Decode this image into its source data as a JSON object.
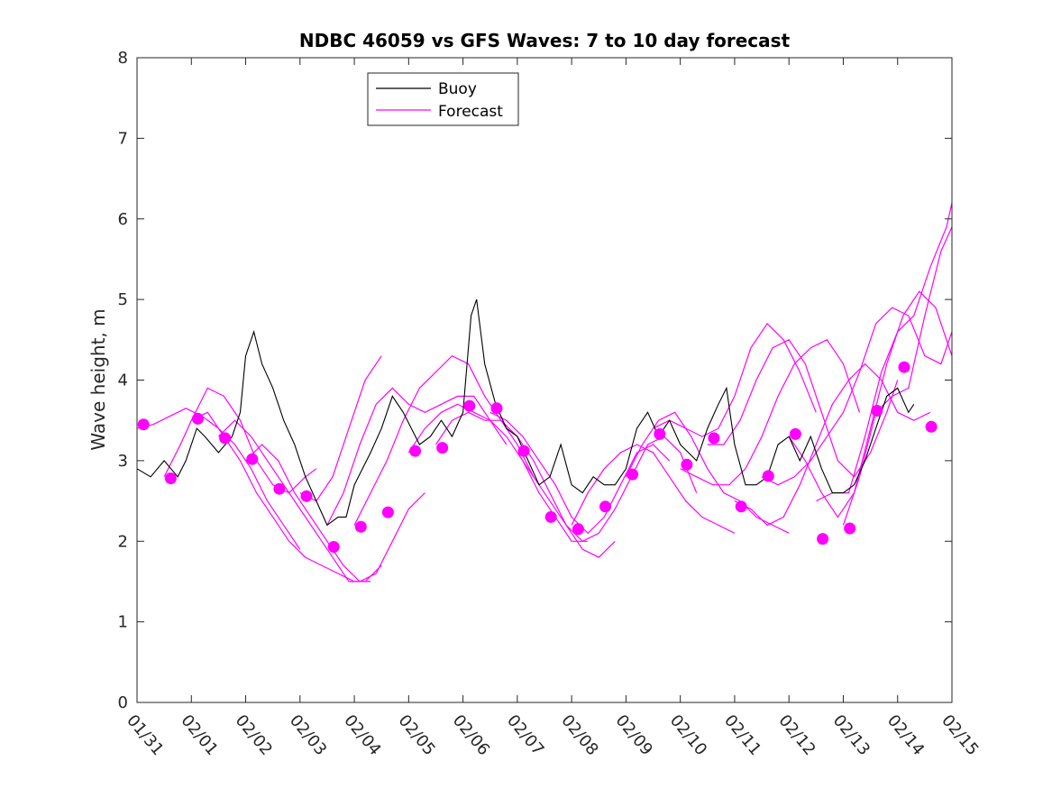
{
  "chart_data": {
    "type": "line",
    "title": "NDBC 46059 vs GFS Waves: 7 to 10 day forecast",
    "xlabel": "",
    "ylabel": "Wave height, m",
    "xlim": [
      0,
      15
    ],
    "ylim": [
      0,
      8
    ],
    "yticks": [
      0,
      1,
      2,
      3,
      4,
      5,
      6,
      7,
      8
    ],
    "xtick_labels": [
      "01/31",
      "02/01",
      "02/02",
      "02/03",
      "02/04",
      "02/05",
      "02/06",
      "02/07",
      "02/08",
      "02/09",
      "02/10",
      "02/11",
      "02/12",
      "02/13",
      "02/14",
      "02/15"
    ],
    "legend": [
      {
        "name": "Buoy",
        "color": "#000000"
      },
      {
        "name": "Forecast",
        "color": "#ff00ff"
      }
    ],
    "legend_position": "top-left",
    "series": [
      {
        "name": "Buoy",
        "color": "#000000",
        "x": [
          0,
          0.25,
          0.5,
          0.75,
          0.9,
          1.1,
          1.25,
          1.5,
          1.75,
          1.9,
          2.0,
          2.15,
          2.3,
          2.5,
          2.7,
          2.9,
          3.1,
          3.3,
          3.5,
          3.7,
          3.85,
          4.0,
          4.3,
          4.5,
          4.7,
          4.9,
          5.2,
          5.4,
          5.6,
          5.8,
          6.0,
          6.15,
          6.25,
          6.4,
          6.6,
          6.8,
          7.0,
          7.2,
          7.4,
          7.6,
          7.8,
          8.0,
          8.2,
          8.4,
          8.6,
          8.8,
          9.0,
          9.2,
          9.4,
          9.6,
          9.8,
          10.0,
          10.3,
          10.5,
          10.7,
          10.85,
          11.0,
          11.2,
          11.4,
          11.6,
          11.8,
          12.0,
          12.2,
          12.4,
          12.6,
          12.8,
          13.0,
          13.2,
          13.4,
          13.6,
          13.8,
          14.0,
          14.2,
          14.3
        ],
        "values": [
          2.9,
          2.8,
          3.0,
          2.8,
          3.0,
          3.4,
          3.3,
          3.1,
          3.3,
          3.6,
          4.3,
          4.6,
          4.2,
          3.9,
          3.5,
          3.2,
          2.8,
          2.5,
          2.2,
          2.3,
          2.3,
          2.7,
          3.1,
          3.4,
          3.8,
          3.6,
          3.2,
          3.3,
          3.5,
          3.3,
          3.6,
          4.8,
          5.0,
          4.2,
          3.7,
          3.4,
          3.3,
          3.0,
          2.7,
          2.8,
          3.2,
          2.7,
          2.6,
          2.8,
          2.7,
          2.7,
          2.9,
          3.4,
          3.6,
          3.3,
          3.5,
          3.2,
          3.0,
          3.4,
          3.7,
          3.9,
          3.2,
          2.7,
          2.7,
          2.8,
          3.2,
          3.3,
          3.0,
          3.3,
          2.9,
          2.6,
          2.6,
          2.7,
          3.0,
          3.4,
          3.8,
          3.9,
          3.6,
          3.7
        ]
      }
    ],
    "forecast_runs": [
      {
        "name": "Forecast",
        "x": [
          0,
          0.3,
          0.6,
          0.9,
          1.2,
          1.5,
          1.8,
          2.1,
          2.4,
          2.7,
          3.0
        ],
        "values": [
          3.4,
          3.45,
          3.55,
          3.65,
          3.55,
          3.4,
          3.2,
          2.9,
          2.5,
          2.2,
          1.9
        ]
      },
      {
        "name": "Forecast",
        "x": [
          0.5,
          0.8,
          1.0,
          1.3,
          1.6,
          1.9,
          2.2,
          2.5,
          2.8,
          3.1,
          3.3
        ],
        "values": [
          2.8,
          3.2,
          3.5,
          3.9,
          3.8,
          3.5,
          3.0,
          2.7,
          2.6,
          2.8,
          2.9
        ]
      },
      {
        "name": "Forecast",
        "x": [
          1.0,
          1.3,
          1.6,
          1.9,
          2.2,
          2.5,
          2.8,
          3.1,
          3.4,
          3.7,
          4.0,
          4.3
        ],
        "values": [
          3.5,
          3.6,
          3.3,
          3.0,
          2.6,
          2.3,
          2.0,
          1.8,
          1.7,
          1.6,
          1.5,
          1.5
        ]
      },
      {
        "name": "Forecast",
        "x": [
          1.5,
          1.8,
          2.1,
          2.4,
          2.7,
          3.0,
          3.3,
          3.6,
          3.9,
          4.2,
          4.5
        ],
        "values": [
          3.3,
          3.5,
          3.3,
          3.0,
          2.7,
          2.4,
          2.1,
          1.8,
          1.5,
          1.5,
          1.7
        ]
      },
      {
        "name": "Forecast",
        "x": [
          2.0,
          2.3,
          2.6,
          2.9,
          3.2,
          3.5,
          3.8,
          4.1,
          4.4,
          4.7,
          5.0,
          5.3
        ],
        "values": [
          3.0,
          3.2,
          3.0,
          2.6,
          2.3,
          2.0,
          1.7,
          1.5,
          1.6,
          2.0,
          2.4,
          2.6
        ]
      },
      {
        "name": "Forecast",
        "x": [
          3.0,
          3.3,
          3.6,
          3.9,
          4.2,
          4.5
        ],
        "values": [
          2.6,
          2.5,
          2.8,
          3.4,
          4.0,
          4.3
        ]
      },
      {
        "name": "Forecast",
        "x": [
          3.5,
          3.8,
          4.1,
          4.4,
          4.7,
          5.0,
          5.3,
          5.6,
          5.9,
          6.2,
          6.5,
          6.8
        ],
        "values": [
          2.2,
          2.6,
          3.2,
          3.7,
          3.9,
          3.7,
          3.6,
          3.7,
          3.8,
          3.8,
          3.5,
          3.2
        ]
      },
      {
        "name": "Forecast",
        "x": [
          4.0,
          4.3,
          4.6,
          4.9,
          5.2,
          5.5,
          5.8,
          6.1,
          6.4,
          6.7,
          7.0,
          7.3
        ],
        "values": [
          2.2,
          2.6,
          3.0,
          3.5,
          3.9,
          4.1,
          4.3,
          4.2,
          3.8,
          3.5,
          3.2,
          2.8
        ]
      },
      {
        "name": "Forecast",
        "x": [
          5.0,
          5.3,
          5.6,
          5.9,
          6.2,
          6.5,
          6.8,
          7.1,
          7.4,
          7.7,
          8.0,
          8.3
        ],
        "values": [
          3.1,
          3.4,
          3.6,
          3.7,
          3.6,
          3.5,
          3.3,
          3.0,
          2.6,
          2.3,
          2.0,
          2.0
        ]
      },
      {
        "name": "Forecast",
        "x": [
          5.5,
          5.8,
          6.1,
          6.4,
          6.7,
          7.0,
          7.3,
          7.6,
          7.9,
          8.2,
          8.5,
          8.8
        ],
        "values": [
          3.2,
          3.5,
          3.6,
          3.5,
          3.5,
          3.3,
          3.0,
          2.6,
          2.2,
          1.9,
          1.8,
          2.0
        ]
      },
      {
        "name": "Forecast",
        "x": [
          6.5,
          6.8,
          7.1,
          7.4,
          7.7,
          8.0,
          8.3,
          8.6,
          8.9,
          9.2,
          9.5,
          9.8
        ],
        "values": [
          3.6,
          3.5,
          3.3,
          3.0,
          2.7,
          2.3,
          2.1,
          2.3,
          2.7,
          3.1,
          3.2,
          3.0
        ]
      },
      {
        "name": "Forecast",
        "x": [
          7.0,
          7.3,
          7.6,
          7.9,
          8.2,
          8.5,
          8.8,
          9.1,
          9.4,
          9.7,
          10.0,
          10.3
        ],
        "values": [
          3.1,
          2.8,
          2.5,
          2.2,
          2.0,
          2.1,
          2.4,
          2.8,
          3.2,
          3.3,
          3.1,
          2.6
        ]
      },
      {
        "name": "Forecast",
        "x": [
          8.0,
          8.3,
          8.6,
          8.9,
          9.2,
          9.5,
          9.8,
          10.1,
          10.4,
          10.7,
          11.0
        ],
        "values": [
          2.2,
          2.6,
          2.9,
          3.1,
          3.2,
          3.1,
          2.8,
          2.5,
          2.3,
          2.2,
          2.1
        ]
      },
      {
        "name": "Forecast",
        "x": [
          9.0,
          9.3,
          9.6,
          9.9,
          10.2,
          10.5,
          10.8,
          11.1,
          11.4,
          11.7,
          12.0
        ],
        "values": [
          2.8,
          3.2,
          3.5,
          3.6,
          3.3,
          2.9,
          2.6,
          2.5,
          2.3,
          2.2,
          2.1
        ]
      },
      {
        "name": "Forecast",
        "x": [
          9.5,
          9.8,
          10.1,
          10.4,
          10.7,
          11.0,
          11.3,
          11.6,
          11.9,
          12.2,
          12.5
        ],
        "values": [
          3.4,
          3.5,
          3.4,
          3.3,
          3.4,
          3.8,
          4.4,
          4.7,
          4.5,
          4.1,
          3.6
        ]
      },
      {
        "name": "Forecast",
        "x": [
          10.0,
          10.3,
          10.6,
          10.9,
          11.2,
          11.5,
          11.8,
          12.1,
          12.4,
          12.7,
          13.0,
          13.3
        ],
        "values": [
          2.9,
          2.8,
          2.7,
          2.7,
          2.9,
          3.3,
          3.8,
          4.2,
          4.4,
          4.5,
          4.2,
          3.6
        ]
      },
      {
        "name": "Forecast",
        "x": [
          10.5,
          10.8,
          11.1,
          11.4,
          11.7,
          12.0,
          12.3,
          12.6,
          12.9,
          13.2,
          13.5,
          13.8,
          14.0
        ],
        "values": [
          3.2,
          3.2,
          3.5,
          4.0,
          4.4,
          4.5,
          4.2,
          3.6,
          3.0,
          2.8,
          3.1,
          3.6,
          4.0
        ]
      },
      {
        "name": "Forecast",
        "x": [
          11.0,
          11.3,
          11.6,
          11.9,
          12.2,
          12.5,
          12.8,
          13.1,
          13.4,
          13.7,
          14.0,
          14.3,
          14.6
        ],
        "values": [
          2.5,
          2.4,
          2.2,
          2.3,
          2.7,
          3.2,
          3.7,
          4.0,
          4.2,
          4.0,
          3.6,
          3.5,
          3.6
        ]
      },
      {
        "name": "Forecast",
        "x": [
          11.5,
          11.8,
          12.1,
          12.4,
          12.7,
          13.0,
          13.3,
          13.6,
          13.9,
          14.2,
          14.5,
          14.8,
          15.0
        ],
        "values": [
          2.8,
          2.7,
          2.8,
          3.0,
          3.3,
          3.6,
          4.1,
          4.7,
          4.9,
          4.8,
          4.3,
          4.2,
          4.6
        ]
      },
      {
        "name": "Forecast",
        "x": [
          12.0,
          12.3,
          12.6,
          12.9,
          13.2,
          13.5,
          13.8,
          14.1,
          14.4,
          14.7,
          15.0
        ],
        "values": [
          3.3,
          3.0,
          2.6,
          2.3,
          2.6,
          3.4,
          4.2,
          4.8,
          5.1,
          4.9,
          4.3
        ]
      },
      {
        "name": "Forecast",
        "x": [
          12.5,
          12.8,
          13.1,
          13.4,
          13.7,
          14.0,
          14.3,
          14.6,
          14.9,
          15.0
        ],
        "values": [
          2.5,
          2.6,
          2.6,
          3.3,
          4.1,
          4.6,
          4.8,
          5.4,
          5.9,
          6.2
        ]
      },
      {
        "name": "Forecast",
        "x": [
          13.0,
          13.3,
          13.6,
          13.9,
          14.2,
          14.5,
          14.8,
          15.0
        ],
        "values": [
          2.2,
          2.8,
          3.6,
          3.8,
          3.9,
          4.8,
          5.6,
          5.9
        ]
      }
    ],
    "forecast_points": {
      "name": "Forecast",
      "x": [
        0.12,
        0.62,
        1.12,
        1.62,
        2.12,
        2.62,
        3.12,
        3.62,
        4.12,
        4.62,
        5.12,
        5.62,
        6.12,
        6.62,
        7.12,
        7.62,
        8.12,
        8.62,
        9.12,
        9.62,
        10.12,
        10.62,
        11.12,
        11.62,
        12.12,
        12.62,
        13.12,
        13.62,
        14.12,
        14.62
      ],
      "values": [
        3.45,
        2.78,
        3.52,
        3.28,
        3.02,
        2.65,
        2.56,
        1.93,
        2.18,
        2.36,
        3.12,
        3.16,
        3.68,
        3.65,
        3.12,
        2.3,
        2.15,
        2.43,
        2.83,
        3.33,
        2.95,
        3.28,
        2.43,
        2.81,
        3.33,
        2.03,
        2.16,
        3.62,
        4.16,
        3.42
      ]
    }
  }
}
